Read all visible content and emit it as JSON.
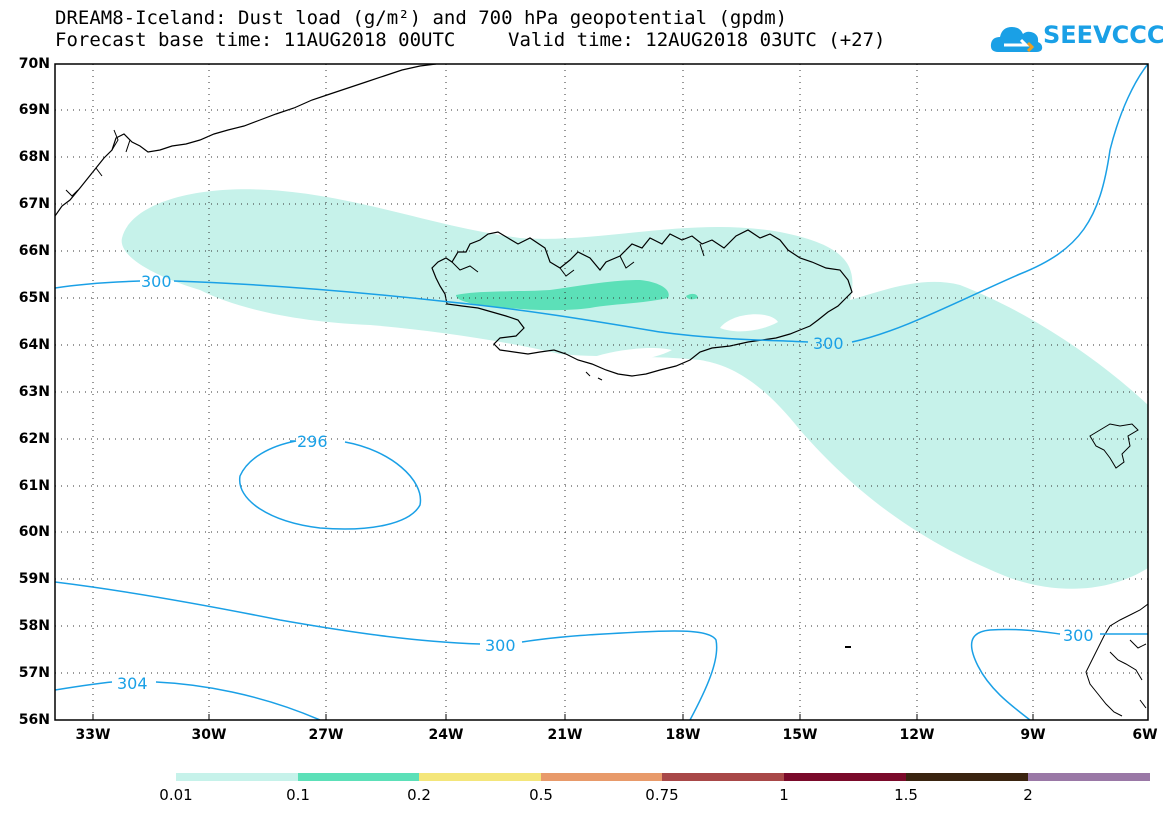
{
  "title": {
    "line1": "DREAM8-Iceland: Dust load (g/m²) and 700 hPa geopotential (gpdm)",
    "line2": "Forecast base time: 11AUG2018 00UTC",
    "valid": "Valid time: 12AUG2018 03UTC (+27)"
  },
  "logo": {
    "text": "SEEVCCC",
    "icon": "cloud-icon",
    "color": "#1aa0e6"
  },
  "axes": {
    "lat_labels": [
      "70N",
      "69N",
      "68N",
      "67N",
      "66N",
      "65N",
      "64N",
      "63N",
      "62N",
      "61N",
      "60N",
      "59N",
      "58N",
      "57N",
      "56N"
    ],
    "lon_labels": [
      "33W",
      "30W",
      "27W",
      "24W",
      "21W",
      "18W",
      "15W",
      "12W",
      "9W",
      "6W"
    ]
  },
  "contours": {
    "labels": [
      "300",
      "300",
      "296",
      "300",
      "304",
      "300"
    ],
    "color": "#1aa0e6"
  },
  "colorbar": {
    "labels": [
      "0.01",
      "0.1",
      "0.2",
      "0.5",
      "0.75",
      "1",
      "1.5",
      "2"
    ],
    "colors": [
      "#c6f2ea",
      "#5ce0b8",
      "#f4e67a",
      "#e89a6a",
      "#a84848",
      "#7a0a2a",
      "#3a2410",
      "#9a78a6"
    ]
  },
  "dust_colors": {
    "light": "#c6f2ea",
    "medium": "#5ce0b8"
  },
  "land_color": "#000000",
  "grid": true
}
